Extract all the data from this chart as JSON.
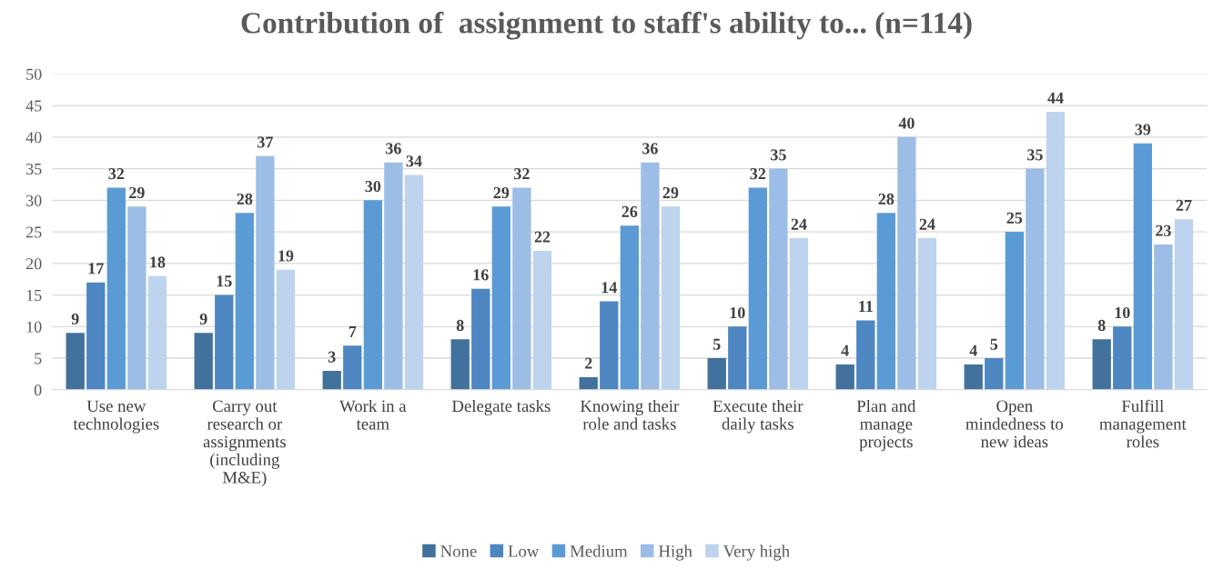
{
  "chart_data": {
    "type": "bar",
    "title": "Contribution of  assignment to staff's ability to... (n=114)",
    "categories": [
      "Use new\ntechnologies",
      "Carry out\nresearch or\nassignments\n(including\nM&E)",
      "Work in a\nteam",
      "Delegate tasks",
      "Knowing their\nrole and tasks",
      "Execute their\ndaily tasks",
      "Plan and\nmanage\nprojects",
      "Open\nmindedness to\nnew ideas",
      "Fulfill\nmanagement\nroles"
    ],
    "series": [
      {
        "name": "None",
        "color": "#41719c",
        "values": [
          9,
          9,
          3,
          8,
          2,
          5,
          4,
          4,
          8
        ]
      },
      {
        "name": "Low",
        "color": "#4e86c2",
        "values": [
          17,
          15,
          7,
          16,
          14,
          10,
          11,
          5,
          10
        ]
      },
      {
        "name": "Medium",
        "color": "#5b9bd5",
        "values": [
          32,
          28,
          30,
          29,
          26,
          32,
          28,
          25,
          39
        ]
      },
      {
        "name": "High",
        "color": "#9cbde6",
        "values": [
          29,
          37,
          36,
          32,
          36,
          35,
          40,
          35,
          23
        ]
      },
      {
        "name": "Very high",
        "color": "#bdd3ee",
        "values": [
          18,
          19,
          34,
          22,
          29,
          24,
          24,
          44,
          27
        ]
      }
    ],
    "ylim": [
      0,
      50
    ],
    "yticks": [
      0,
      5,
      10,
      15,
      20,
      25,
      30,
      35,
      40,
      45,
      50
    ],
    "grid": "y",
    "legend": "bottom",
    "data_labels": true
  }
}
